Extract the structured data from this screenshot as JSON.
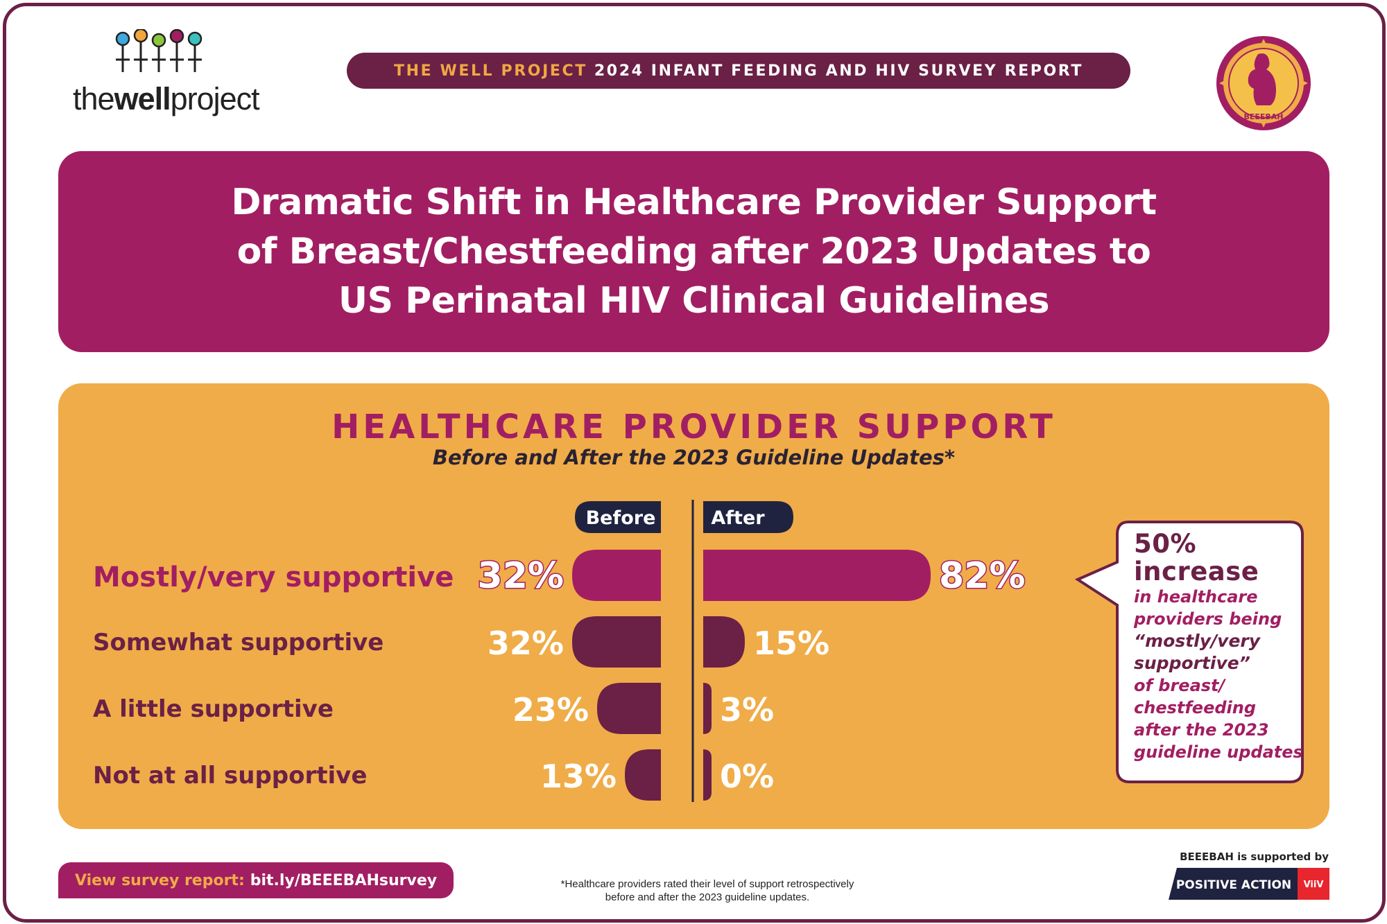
{
  "header": {
    "logo_text_light_1": "the",
    "logo_text_bold": "well",
    "logo_text_light_2": "project",
    "survey_bar_accent": "THE WELL PROJECT",
    "survey_bar_text": "2024 INFANT FEEDING AND HIV SURVEY REPORT",
    "badge_text": "BEEEBAH"
  },
  "title": {
    "line1": "Dramatic Shift in Healthcare Provider Support",
    "line2": "of Breast/Chestfeeding after 2023 Updates to",
    "line3": "US Perinatal HIV Clinical Guidelines"
  },
  "chart_data": {
    "type": "bar",
    "title": "HEALTHCARE PROVIDER SUPPORT",
    "subtitle": "Before and After the 2023 Guideline Updates*",
    "categories": [
      "Mostly/very supportive",
      "Somewhat supportive",
      "A little supportive",
      "Not at all supportive"
    ],
    "series": [
      {
        "name": "Before",
        "values": [
          32,
          32,
          23,
          13
        ],
        "labels": [
          "32%",
          "32%",
          "23%",
          "13%"
        ]
      },
      {
        "name": "After",
        "values": [
          82,
          15,
          3,
          0
        ],
        "labels": [
          "82%",
          "15%",
          "3%",
          "0%"
        ]
      }
    ],
    "unit": "%",
    "colors": {
      "highlight": "#a21e62",
      "normal": "#6b2046",
      "header": "#1f2340",
      "label_text": "#ffffff"
    },
    "highlight_category": "Mostly/very supportive"
  },
  "callout": {
    "head1": "50%",
    "head2": "increase",
    "lines": [
      "in healthcare",
      "providers being"
    ],
    "strong_lines": [
      "“mostly/very",
      "supportive”"
    ],
    "tail_lines": [
      "of breast/",
      "chestfeeding",
      "after the 2023",
      "guideline updates"
    ]
  },
  "footer": {
    "link_label": "View survey report:",
    "link_url": "bit.ly/BEEEBAHsurvey",
    "footnote_line1": "*Healthcare providers rated their level of support retrospectively",
    "footnote_line2": "before and after the 2023 guideline updates.",
    "supported_by": "BEEEBAH is supported by",
    "sponsor_name": "POSITIVE ACTION",
    "sponsor_mark": "ViiV"
  },
  "colors": {
    "magenta": "#a21e62",
    "plum": "#6b2046",
    "orange": "#f0ac48",
    "navy": "#1f2340"
  }
}
